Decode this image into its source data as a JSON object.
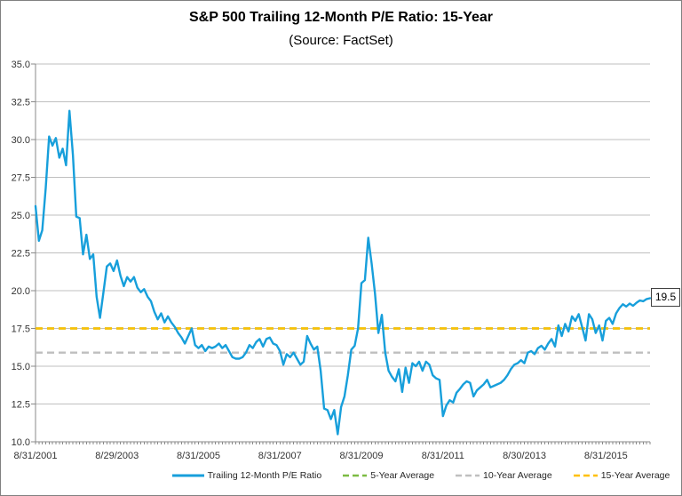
{
  "figure": {
    "title": "S&P 500 Trailing 12-Month P/E Ratio: 15-Year",
    "subtitle": "(Source: FactSet)"
  },
  "annotation": {
    "value": "19.5"
  },
  "legend": {
    "position": "bottom",
    "items": [
      {
        "label": "Trailing 12-Month P/E Ratio",
        "color": "#179FDB",
        "dash": false
      },
      {
        "label": "5-Year Average",
        "color": "#7CBB42",
        "dash": true
      },
      {
        "label": "10-Year Average",
        "color": "#BFBFBF",
        "dash": true
      },
      {
        "label": "15-Year Average",
        "color": "#FFC000",
        "dash": true
      }
    ]
  },
  "chart_data": {
    "type": "line",
    "title": "S&P 500 Trailing 12-Month P/E Ratio: 15-Year",
    "subtitle": "(Source: FactSet)",
    "xlabel": "",
    "ylabel": "",
    "ylim": [
      10,
      35
    ],
    "ytick_step": 2.5,
    "grid": true,
    "legend_position": "bottom",
    "x_unit": "month",
    "x_tick_labels": [
      "8/31/2001",
      "8/29/2003",
      "8/31/2005",
      "8/31/2007",
      "8/31/2009",
      "8/31/2011",
      "8/30/2013",
      "8/31/2015"
    ],
    "points_per_x_tick": 24,
    "colors": {
      "gridline": "#BFBFBF",
      "axis": "#898989",
      "pe_line": "#179FDB",
      "avg_5yr": "#7CBB42",
      "avg_10yr": "#BFBFBF",
      "avg_15yr": "#FFC000"
    },
    "series": [
      {
        "name": "Trailing 12-Month P/E Ratio",
        "type": "line",
        "color": "#179FDB",
        "values": [
          25.6,
          23.3,
          24.0,
          26.8,
          30.2,
          29.6,
          30.1,
          28.8,
          29.4,
          28.3,
          31.9,
          29.0,
          24.9,
          24.8,
          22.4,
          23.7,
          22.1,
          22.4,
          19.6,
          18.2,
          19.9,
          21.6,
          21.8,
          21.3,
          22.0,
          21.0,
          20.3,
          20.9,
          20.6,
          20.9,
          20.2,
          19.9,
          20.1,
          19.6,
          19.3,
          18.6,
          18.1,
          18.5,
          17.9,
          18.3,
          17.9,
          17.6,
          17.2,
          16.9,
          16.5,
          17.0,
          17.5,
          16.4,
          16.2,
          16.4,
          16.0,
          16.3,
          16.2,
          16.3,
          16.5,
          16.2,
          16.4,
          16.0,
          15.6,
          15.5,
          15.5,
          15.6,
          15.9,
          16.4,
          16.2,
          16.6,
          16.8,
          16.3,
          16.8,
          16.9,
          16.5,
          16.4,
          16.0,
          15.1,
          15.8,
          15.6,
          15.9,
          15.5,
          15.1,
          15.3,
          17.0,
          16.5,
          16.1,
          16.3,
          14.7,
          12.2,
          12.1,
          11.5,
          12.1,
          10.5,
          12.3,
          13.0,
          14.4,
          16.1,
          16.35,
          17.5,
          20.5,
          20.7,
          23.5,
          21.8,
          19.8,
          17.2,
          18.4,
          15.9,
          14.7,
          14.3,
          14.0,
          14.8,
          13.3,
          14.9,
          13.9,
          15.2,
          15.0,
          15.3,
          14.7,
          15.3,
          15.1,
          14.4,
          14.2,
          14.1,
          11.7,
          12.4,
          12.75,
          12.6,
          13.25,
          13.5,
          13.8,
          14.0,
          13.9,
          13.0,
          13.4,
          13.6,
          13.8,
          14.1,
          13.6,
          13.7,
          13.8,
          13.9,
          14.1,
          14.4,
          14.8,
          15.1,
          15.2,
          15.4,
          15.2,
          15.9,
          16.0,
          15.8,
          16.2,
          16.35,
          16.1,
          16.5,
          16.8,
          16.3,
          17.7,
          17.0,
          17.8,
          17.3,
          18.3,
          18.0,
          18.45,
          17.6,
          16.7,
          18.45,
          18.1,
          17.2,
          17.7,
          16.7,
          18.0,
          18.2,
          17.8,
          18.5,
          18.85,
          19.1,
          18.95,
          19.15,
          19.0,
          19.2,
          19.35,
          19.3,
          19.45,
          19.5
        ]
      },
      {
        "name": "5-Year Average",
        "type": "hline",
        "color": "#7CBB42",
        "value": 17.5
      },
      {
        "name": "10-Year Average",
        "type": "hline",
        "color": "#BFBFBF",
        "value": 15.9
      },
      {
        "name": "15-Year Average",
        "type": "hline",
        "color": "#FFC000",
        "value": 17.5
      }
    ],
    "end_label": "19.5"
  }
}
